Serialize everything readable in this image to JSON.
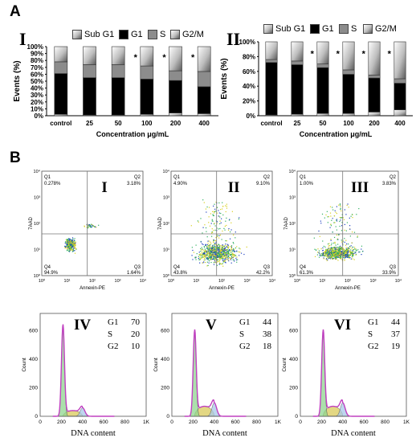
{
  "panel_a": {
    "label": "A"
  },
  "panel_b": {
    "label": "B"
  },
  "chart_data": [
    {
      "type": "bar",
      "stacked": true,
      "panel": "I",
      "categories": [
        "control",
        "25",
        "50",
        "100",
        "200",
        "400"
      ],
      "series": [
        {
          "name": "G1",
          "values": [
            59,
            54,
            54,
            51,
            47,
            39
          ]
        },
        {
          "name": "S",
          "values": [
            17,
            19,
            19,
            19,
            14,
            22
          ]
        },
        {
          "name": "G2/M",
          "values": [
            22,
            26,
            26,
            28,
            35,
            36
          ]
        },
        {
          "name": "Sub G1",
          "values": [
            2,
            1,
            1,
            2,
            4,
            3
          ]
        }
      ],
      "significance": [
        "",
        "",
        "",
        "*",
        "*",
        "*"
      ],
      "xlabel": "Concentration  μg/mL",
      "ylabel": "Events (%)",
      "yticks": [
        "0%",
        "10%",
        "20%",
        "30%",
        "40%",
        "50%",
        "60%",
        "70%",
        "80%",
        "90%",
        "100%"
      ],
      "ylim": [
        0,
        100
      ],
      "legend_position": "top"
    },
    {
      "type": "bar",
      "stacked": true,
      "panel": "II",
      "categories": [
        "control",
        "25",
        "50",
        "100",
        "200",
        "400"
      ],
      "series": [
        {
          "name": "G1",
          "values": [
            71,
            67,
            62,
            53,
            46,
            36
          ]
        },
        {
          "name": "S",
          "values": [
            4,
            5,
            5,
            6,
            4,
            6
          ]
        },
        {
          "name": "G2/M",
          "values": [
            24,
            26,
            30,
            38,
            45,
            50
          ]
        },
        {
          "name": "Sub G1",
          "values": [
            1,
            2,
            3,
            3,
            5,
            8
          ]
        }
      ],
      "significance": [
        "",
        "",
        "*",
        "*",
        "*",
        "*"
      ],
      "xlabel": "Concentration  μg/mL",
      "ylabel": "Events (%)",
      "yticks": [
        "0%",
        "20%",
        "40%",
        "60%",
        "80%",
        "100%"
      ],
      "ylim": [
        0,
        100
      ],
      "legend_position": "top"
    }
  ],
  "legend": {
    "items": [
      {
        "name": "Sub G1",
        "pattern": "fade"
      },
      {
        "name": "G1",
        "pattern": "black"
      },
      {
        "name": "S",
        "pattern": "gray"
      },
      {
        "name": "G2/M",
        "pattern": "fade"
      }
    ]
  },
  "flow": [
    {
      "roman": "I",
      "q1": "0.278%",
      "q2": "3.18%",
      "q3": "1.64%",
      "q4": "94.9%",
      "ylabel": "7AAD",
      "xlabel": "Annexin-PE"
    },
    {
      "roman": "II",
      "q1": "4.90%",
      "q2": "9.10%",
      "q3": "42.2%",
      "q4": "43.8%",
      "ylabel": "7AAD",
      "xlabel": "Annexin-PE"
    },
    {
      "roman": "III",
      "q1": "1.00%",
      "q2": "3.83%",
      "q3": "33.9%",
      "q4": "61.3%",
      "ylabel": "7AAD",
      "xlabel": "Annexin-PE"
    }
  ],
  "flow_quadrant_names": {
    "q1": "Q1",
    "q2": "Q2",
    "q3": "Q3",
    "q4": "Q4"
  },
  "flow_axis_ticks": {
    "x": [
      "10⁰",
      "10¹",
      "10²",
      "10³",
      "10⁴"
    ],
    "y": [
      "10⁰",
      "10¹",
      "10²",
      "10³",
      "10⁴"
    ]
  },
  "histograms": [
    {
      "roman": "IV",
      "g1": "70",
      "s": "20",
      "g2": "10"
    },
    {
      "roman": "V",
      "g1": "44",
      "s": "38",
      "g2": "18"
    },
    {
      "roman": "VI",
      "g1": "44",
      "s": "37",
      "g2": "19"
    }
  ],
  "histogram_labels": {
    "g1": "G1",
    "s": "S",
    "g2": "G2",
    "xlabel": "DNA content",
    "ylabel": "Count",
    "xticks": [
      "0",
      "200",
      "400",
      "600",
      "800",
      "1K"
    ],
    "yticks": [
      "0",
      "200",
      "400",
      "600"
    ]
  },
  "colors": {
    "g1_bar": "#000000",
    "s_bar": "#8c8c8c",
    "histo_g1_fill": "#8fd68f",
    "histo_s_fill": "#d9c95a",
    "histo_g2_fill": "#a8c8e8",
    "histo_outline": "#c040c0"
  }
}
